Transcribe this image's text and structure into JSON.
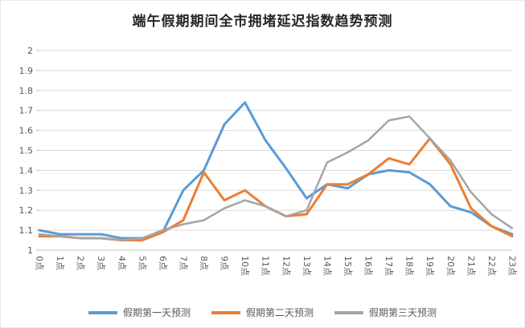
{
  "chart_data": {
    "type": "line",
    "title": "端午假期期间全市拥堵延迟指数趋势预测",
    "categories": [
      "0点",
      "1点",
      "2点",
      "3点",
      "4点",
      "5点",
      "6点",
      "7点",
      "8点",
      "9点",
      "10点",
      "11点",
      "12点",
      "13点",
      "14点",
      "15点",
      "16点",
      "17点",
      "18点",
      "19点",
      "20点",
      "21点",
      "22点",
      "23点"
    ],
    "series": [
      {
        "name": "假期第一天预测",
        "color": "#5B9BD5",
        "width": 3,
        "values": [
          1.1,
          1.08,
          1.08,
          1.08,
          1.06,
          1.06,
          1.09,
          1.3,
          1.4,
          1.63,
          1.74,
          1.55,
          1.41,
          1.26,
          1.33,
          1.31,
          1.38,
          1.4,
          1.39,
          1.33,
          1.22,
          1.19,
          1.12,
          1.08
        ]
      },
      {
        "name": "假期第二天预测",
        "color": "#ED7D31",
        "width": 3,
        "values": [
          1.07,
          1.07,
          1.06,
          1.06,
          1.05,
          1.05,
          1.09,
          1.15,
          1.39,
          1.25,
          1.3,
          1.22,
          1.17,
          1.18,
          1.33,
          1.33,
          1.38,
          1.46,
          1.43,
          1.56,
          1.43,
          1.21,
          1.12,
          1.07
        ]
      },
      {
        "name": "假期第三天预测",
        "color": "#A5A5A5",
        "width": 2.5,
        "values": [
          1.08,
          1.07,
          1.06,
          1.06,
          1.05,
          1.06,
          1.1,
          1.13,
          1.15,
          1.21,
          1.25,
          1.22,
          1.17,
          1.2,
          1.44,
          1.49,
          1.55,
          1.65,
          1.67,
          1.56,
          1.45,
          1.29,
          1.18,
          1.11
        ]
      }
    ],
    "xlabel": "",
    "ylabel": "",
    "ylim": [
      1,
      2
    ],
    "ytick_step": 0.1,
    "yticks": [
      "1",
      "1.1",
      "1.2",
      "1.3",
      "1.4",
      "1.5",
      "1.6",
      "1.7",
      "1.8",
      "1.9",
      "2"
    ],
    "grid": true,
    "legend_position": "bottom"
  },
  "colors": {
    "background": "#FFFFFF",
    "grid": "#D9D9D9",
    "axis": "#BFBFBF",
    "tick_label": "#595959",
    "title": "#262626"
  }
}
